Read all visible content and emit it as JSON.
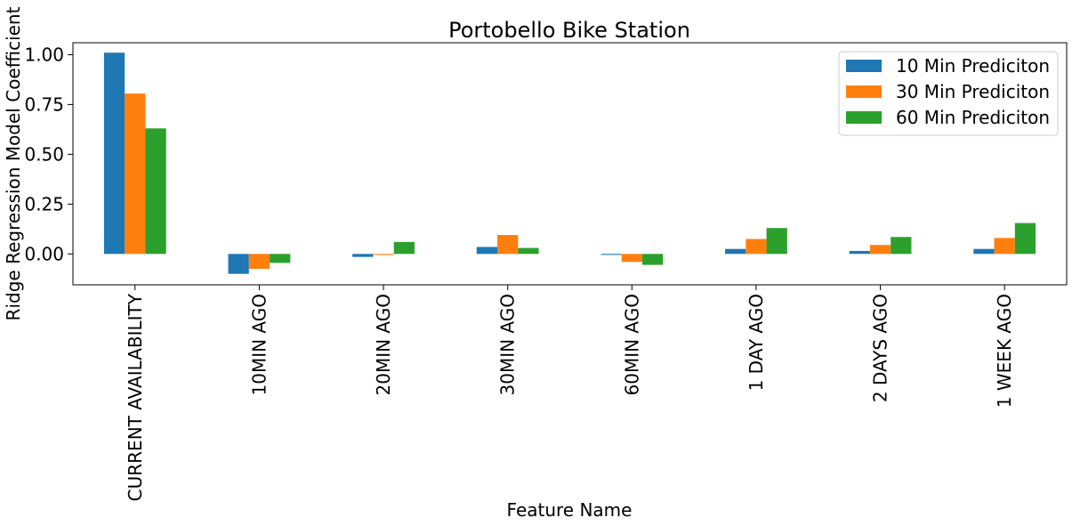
{
  "chart_data": {
    "type": "bar",
    "title": "Portobello Bike Station",
    "xlabel": "Feature Name",
    "ylabel": "Ridge Regression Model Coefficient",
    "categories": [
      "CURRENT AVAILABILITY",
      "10MIN AGO",
      "20MIN AGO",
      "30MIN AGO",
      "60MIN AGO",
      "1 DAY AGO",
      "2 DAYS AGO",
      "1 WEEK AGO"
    ],
    "series": [
      {
        "name": "10 Min Prediciton",
        "color": "#1f77b4",
        "values": [
          1.01,
          -0.1,
          -0.015,
          0.035,
          -0.005,
          0.025,
          0.015,
          0.025
        ]
      },
      {
        "name": "30 Min Prediciton",
        "color": "#ff7f0e",
        "values": [
          0.805,
          -0.075,
          -0.005,
          0.095,
          -0.04,
          0.075,
          0.045,
          0.08
        ]
      },
      {
        "name": "60 Min Prediciton",
        "color": "#2ca02c",
        "values": [
          0.63,
          -0.045,
          0.06,
          0.03,
          -0.055,
          0.13,
          0.085,
          0.155
        ]
      }
    ],
    "ylim": [
      -0.155,
      1.06
    ],
    "yticks": [
      0.0,
      0.25,
      0.5,
      0.75,
      1.0
    ],
    "ytick_labels": [
      "0.00",
      "0.25",
      "0.50",
      "0.75",
      "1.00"
    ],
    "grid": false,
    "legend_position": "top-right"
  }
}
